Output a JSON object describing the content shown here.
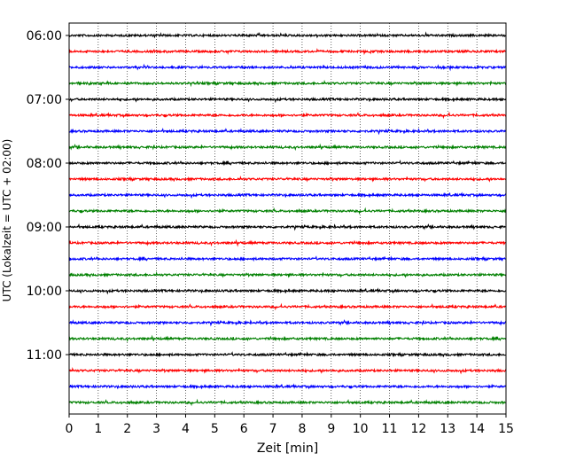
{
  "chart_data": {
    "type": "line",
    "title": "",
    "xlabel": "Zeit  [min]",
    "ylabel": "UTC (Lokalzeit = UTC + 02:00)",
    "xlim": [
      0,
      15
    ],
    "x_ticks": [
      "0",
      "1",
      "2",
      "3",
      "4",
      "5",
      "6",
      "7",
      "8",
      "9",
      "10",
      "11",
      "12",
      "13",
      "14",
      "15"
    ],
    "y_ticks": [
      "06:00",
      "07:00",
      "08:00",
      "09:00",
      "10:00",
      "11:00"
    ],
    "grid_x": true,
    "grid_y": false,
    "trace_interval_min": 15,
    "start_utc": "06:00",
    "end_utc": "11:45",
    "colors_cycle": [
      "#000000",
      "#ff0000",
      "#0000ff",
      "#008000"
    ],
    "series": [
      {
        "offset": "06:00",
        "color": "#000000"
      },
      {
        "offset": "06:15",
        "color": "#ff0000"
      },
      {
        "offset": "06:30",
        "color": "#0000ff"
      },
      {
        "offset": "06:45",
        "color": "#008000"
      },
      {
        "offset": "07:00",
        "color": "#000000"
      },
      {
        "offset": "07:15",
        "color": "#ff0000"
      },
      {
        "offset": "07:30",
        "color": "#0000ff"
      },
      {
        "offset": "07:45",
        "color": "#008000"
      },
      {
        "offset": "08:00",
        "color": "#000000"
      },
      {
        "offset": "08:15",
        "color": "#ff0000"
      },
      {
        "offset": "08:30",
        "color": "#0000ff"
      },
      {
        "offset": "08:45",
        "color": "#008000"
      },
      {
        "offset": "09:00",
        "color": "#000000"
      },
      {
        "offset": "09:15",
        "color": "#ff0000"
      },
      {
        "offset": "09:30",
        "color": "#0000ff"
      },
      {
        "offset": "09:45",
        "color": "#008000"
      },
      {
        "offset": "10:00",
        "color": "#000000"
      },
      {
        "offset": "10:15",
        "color": "#ff0000"
      },
      {
        "offset": "10:30",
        "color": "#0000ff"
      },
      {
        "offset": "10:45",
        "color": "#008000"
      },
      {
        "offset": "11:00",
        "color": "#000000"
      },
      {
        "offset": "11:15",
        "color": "#ff0000"
      },
      {
        "offset": "11:30",
        "color": "#0000ff"
      },
      {
        "offset": "11:45",
        "color": "#008000"
      }
    ]
  }
}
